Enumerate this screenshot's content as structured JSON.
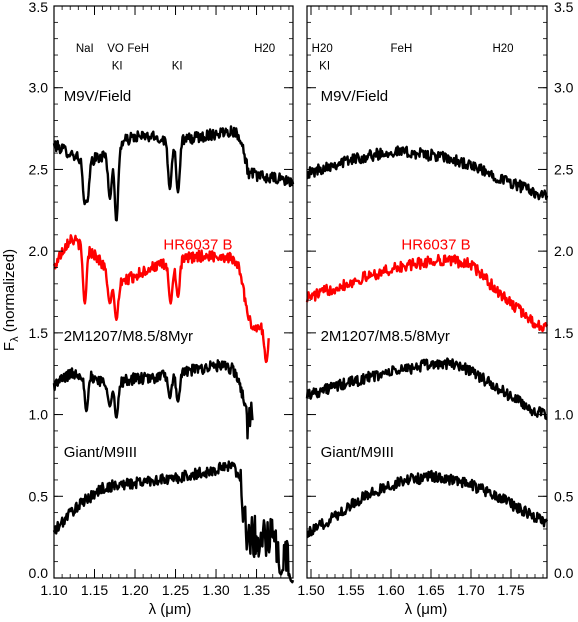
{
  "figure": {
    "ylabel": "F",
    "ylabel_sub": "λ",
    "ylabel_rest": " (normalized)",
    "xlabel_left": "λ (μm)",
    "xlabel_right": "λ (μm)"
  },
  "chart_data": [
    {
      "type": "line",
      "panel": "left",
      "xlim": [
        1.1,
        1.395
      ],
      "ylim": [
        0.0,
        3.5
      ],
      "xticks": [
        "1.10",
        "1.15",
        "1.20",
        "1.25",
        "1.30",
        "1.35"
      ],
      "xtick_values": [
        1.1,
        1.15,
        1.2,
        1.25,
        1.3,
        1.35
      ],
      "yticks": [
        "0.0",
        "0.5",
        "1.0",
        "1.5",
        "2.0",
        "2.5",
        "3.0",
        "3.5"
      ],
      "ytick_values": [
        0.0,
        0.5,
        1.0,
        1.5,
        2.0,
        2.5,
        3.0,
        3.5
      ],
      "features": [
        {
          "text": "NaI",
          "x": 1.138,
          "y": 3.22
        },
        {
          "text": "VO",
          "x": 1.176,
          "y": 3.22
        },
        {
          "text": "FeH",
          "x": 1.204,
          "y": 3.22
        },
        {
          "text": "KI",
          "x": 1.178,
          "y": 3.11
        },
        {
          "text": "KI",
          "x": 1.252,
          "y": 3.11
        },
        {
          "text": "H20",
          "x": 1.36,
          "y": 3.22
        }
      ],
      "series": [
        {
          "name": "M9V/Field",
          "color": "#000000",
          "label_x": 1.112,
          "label_y": 2.92,
          "x_end": 1.395,
          "points": [
            [
              1.1,
              2.65
            ],
            [
              1.12,
              2.6
            ],
            [
              1.14,
              2.55
            ],
            [
              1.16,
              2.58
            ],
            [
              1.18,
              2.66
            ],
            [
              1.2,
              2.7
            ],
            [
              1.22,
              2.7
            ],
            [
              1.24,
              2.68
            ],
            [
              1.26,
              2.68
            ],
            [
              1.28,
              2.7
            ],
            [
              1.3,
              2.72
            ],
            [
              1.32,
              2.74
            ],
            [
              1.33,
              2.7
            ],
            [
              1.34,
              2.48
            ],
            [
              1.36,
              2.45
            ],
            [
              1.38,
              2.44
            ],
            [
              1.395,
              2.42
            ]
          ],
          "dips": [
            [
              1.138,
              2.28
            ],
            [
              1.141,
              2.3
            ],
            [
              1.169,
              2.32
            ],
            [
              1.177,
              2.18
            ],
            [
              1.243,
              2.38
            ],
            [
              1.253,
              2.36
            ]
          ]
        },
        {
          "name": "HR6037 B",
          "color": "#ff0000",
          "label_x": 1.235,
          "label_y": 2.01,
          "x_end": 1.365,
          "points": [
            [
              1.1,
              1.9
            ],
            [
              1.11,
              2.0
            ],
            [
              1.12,
              2.08
            ],
            [
              1.13,
              2.05
            ],
            [
              1.14,
              2.02
            ],
            [
              1.15,
              1.98
            ],
            [
              1.16,
              1.92
            ],
            [
              1.17,
              1.82
            ],
            [
              1.18,
              1.8
            ],
            [
              1.2,
              1.85
            ],
            [
              1.22,
              1.9
            ],
            [
              1.24,
              1.92
            ],
            [
              1.26,
              1.95
            ],
            [
              1.28,
              1.97
            ],
            [
              1.3,
              1.97
            ],
            [
              1.32,
              1.96
            ],
            [
              1.33,
              1.88
            ],
            [
              1.34,
              1.58
            ],
            [
              1.35,
              1.52
            ],
            [
              1.365,
              1.55
            ]
          ],
          "dips": [
            [
              1.138,
              1.68
            ],
            [
              1.169,
              1.68
            ],
            [
              1.177,
              1.58
            ],
            [
              1.244,
              1.68
            ],
            [
              1.253,
              1.72
            ],
            [
              1.362,
              1.32
            ]
          ]
        },
        {
          "name": "2M1207/M8.5/8Myr",
          "color": "#000000",
          "label_x": 1.112,
          "label_y": 1.45,
          "x_end": 1.345,
          "points": [
            [
              1.1,
              1.18
            ],
            [
              1.12,
              1.25
            ],
            [
              1.14,
              1.25
            ],
            [
              1.16,
              1.2
            ],
            [
              1.18,
              1.2
            ],
            [
              1.2,
              1.22
            ],
            [
              1.22,
              1.22
            ],
            [
              1.24,
              1.25
            ],
            [
              1.26,
              1.26
            ],
            [
              1.28,
              1.28
            ],
            [
              1.3,
              1.3
            ],
            [
              1.32,
              1.28
            ],
            [
              1.33,
              1.18
            ],
            [
              1.34,
              0.96
            ],
            [
              1.345,
              1.0
            ]
          ],
          "dips": [
            [
              1.14,
              1.02
            ],
            [
              1.169,
              1.05
            ],
            [
              1.177,
              0.98
            ],
            [
              1.243,
              1.1
            ],
            [
              1.253,
              1.08
            ]
          ]
        },
        {
          "name": "Giant/M9III",
          "color": "#000000",
          "label_x": 1.112,
          "label_y": 0.74,
          "x_end": 1.395,
          "points": [
            [
              1.1,
              0.28
            ],
            [
              1.12,
              0.4
            ],
            [
              1.14,
              0.48
            ],
            [
              1.16,
              0.55
            ],
            [
              1.18,
              0.57
            ],
            [
              1.2,
              0.58
            ],
            [
              1.22,
              0.6
            ],
            [
              1.24,
              0.6
            ],
            [
              1.26,
              0.62
            ],
            [
              1.28,
              0.64
            ],
            [
              1.3,
              0.66
            ],
            [
              1.32,
              0.7
            ],
            [
              1.33,
              0.6
            ],
            [
              1.34,
              0.22
            ],
            [
              1.36,
              0.28
            ],
            [
              1.38,
              0.2
            ],
            [
              1.395,
              0.05
            ]
          ],
          "dips": [
            [
              1.393,
              -0.02
            ],
            [
              1.38,
              0.02
            ]
          ]
        }
      ]
    },
    {
      "type": "line",
      "panel": "right",
      "xlim": [
        1.495,
        1.795
      ],
      "ylim": [
        0.0,
        3.5
      ],
      "xticks": [
        "1.50",
        "1.55",
        "1.60",
        "1.65",
        "1.70",
        "1.75"
      ],
      "xtick_values": [
        1.5,
        1.55,
        1.6,
        1.65,
        1.7,
        1.75
      ],
      "yticks": [
        "0.0",
        "0.5",
        "1.0",
        "1.5",
        "2.0",
        "2.5",
        "3.0",
        "3.5"
      ],
      "ytick_values": [
        0.0,
        0.5,
        1.0,
        1.5,
        2.0,
        2.5,
        3.0,
        3.5
      ],
      "features": [
        {
          "text": "H20",
          "x": 1.514,
          "y": 3.22
        },
        {
          "text": "KI",
          "x": 1.517,
          "y": 3.11
        },
        {
          "text": "FeH",
          "x": 1.613,
          "y": 3.22
        },
        {
          "text": "H20",
          "x": 1.74,
          "y": 3.22
        }
      ],
      "series": [
        {
          "name": "M9V/Field",
          "color": "#000000",
          "label_x": 1.512,
          "label_y": 2.92,
          "x_end": 1.795,
          "points": [
            [
              1.5,
              2.48
            ],
            [
              1.52,
              2.52
            ],
            [
              1.55,
              2.56
            ],
            [
              1.58,
              2.59
            ],
            [
              1.6,
              2.61
            ],
            [
              1.63,
              2.6
            ],
            [
              1.66,
              2.58
            ],
            [
              1.69,
              2.54
            ],
            [
              1.72,
              2.48
            ],
            [
              1.75,
              2.42
            ],
            [
              1.77,
              2.38
            ],
            [
              1.795,
              2.33
            ]
          ],
          "dips": []
        },
        {
          "name": "HR6037 B",
          "color": "#ff0000",
          "label_x": 1.613,
          "label_y": 2.01,
          "x_end": 1.795,
          "points": [
            [
              1.5,
              1.72
            ],
            [
              1.52,
              1.76
            ],
            [
              1.55,
              1.81
            ],
            [
              1.58,
              1.86
            ],
            [
              1.61,
              1.9
            ],
            [
              1.64,
              1.93
            ],
            [
              1.67,
              1.95
            ],
            [
              1.7,
              1.92
            ],
            [
              1.72,
              1.82
            ],
            [
              1.74,
              1.72
            ],
            [
              1.76,
              1.64
            ],
            [
              1.78,
              1.56
            ],
            [
              1.795,
              1.52
            ]
          ],
          "dips": []
        },
        {
          "name": "2M1207/M8.5/8Myr",
          "color": "#000000",
          "label_x": 1.512,
          "label_y": 1.45,
          "x_end": 1.795,
          "points": [
            [
              1.5,
              1.13
            ],
            [
              1.53,
              1.17
            ],
            [
              1.56,
              1.21
            ],
            [
              1.59,
              1.25
            ],
            [
              1.62,
              1.28
            ],
            [
              1.65,
              1.31
            ],
            [
              1.68,
              1.31
            ],
            [
              1.7,
              1.27
            ],
            [
              1.72,
              1.2
            ],
            [
              1.74,
              1.14
            ],
            [
              1.76,
              1.08
            ],
            [
              1.78,
              1.02
            ],
            [
              1.795,
              0.99
            ]
          ],
          "dips": []
        },
        {
          "name": "Giant/M9III",
          "color": "#000000",
          "label_x": 1.512,
          "label_y": 0.74,
          "x_end": 1.795,
          "points": [
            [
              1.5,
              0.28
            ],
            [
              1.53,
              0.38
            ],
            [
              1.56,
              0.48
            ],
            [
              1.59,
              0.55
            ],
            [
              1.62,
              0.6
            ],
            [
              1.65,
              0.62
            ],
            [
              1.68,
              0.6
            ],
            [
              1.71,
              0.55
            ],
            [
              1.74,
              0.48
            ],
            [
              1.77,
              0.4
            ],
            [
              1.795,
              0.34
            ]
          ],
          "dips": []
        }
      ]
    }
  ]
}
